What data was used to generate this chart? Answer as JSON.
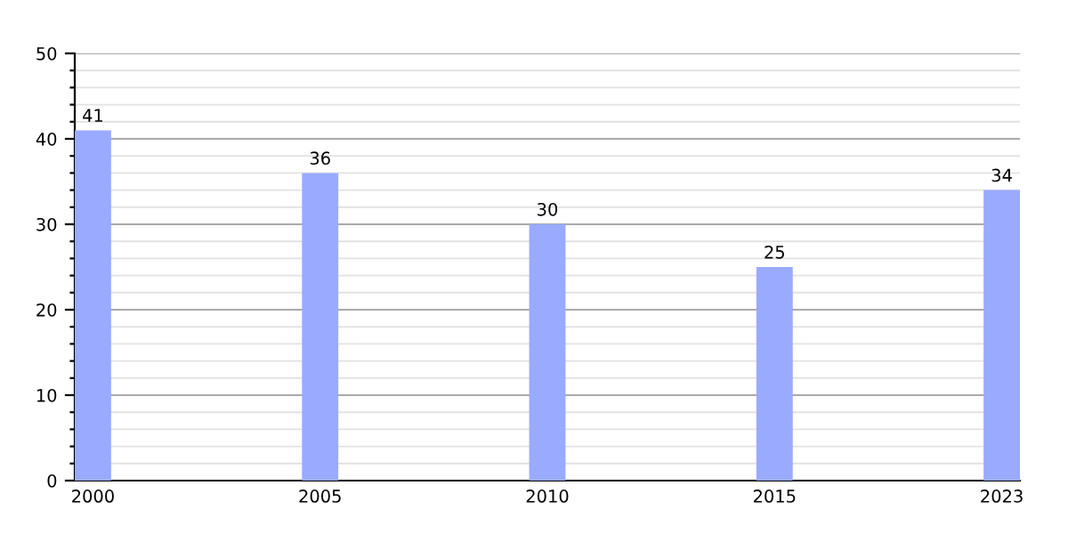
{
  "chart_data": {
    "type": "bar",
    "categories": [
      "2000",
      "2005",
      "2010",
      "2015",
      "2023"
    ],
    "values": [
      41,
      36,
      30,
      25,
      34
    ],
    "color": "#99aaff",
    "ylim": [
      0,
      50
    ],
    "yticks": [
      0,
      {
        "value": 2,
        "label": null
      },
      {
        "value": 4,
        "label": null
      },
      {
        "value": 6,
        "label": null
      },
      {
        "value": 8,
        "label": null
      },
      10,
      {
        "value": 12,
        "label": null
      },
      {
        "value": 14,
        "label": null
      },
      {
        "value": 16,
        "label": null
      },
      {
        "value": 18,
        "label": null
      },
      20,
      {
        "value": 22,
        "label": null
      },
      {
        "value": 24,
        "label": null
      },
      {
        "value": 26,
        "label": null
      },
      {
        "value": 28,
        "label": null
      },
      30,
      {
        "value": 32,
        "label": null
      },
      {
        "value": 34,
        "label": null
      },
      {
        "value": 36,
        "label": null
      },
      {
        "value": 38,
        "label": null
      },
      40,
      {
        "value": 42,
        "label": null
      },
      {
        "value": 44,
        "label": null
      },
      {
        "value": 46,
        "label": null
      },
      {
        "value": 48,
        "label": null
      },
      50
    ],
    "grid": "y",
    "data_labels": true
  }
}
